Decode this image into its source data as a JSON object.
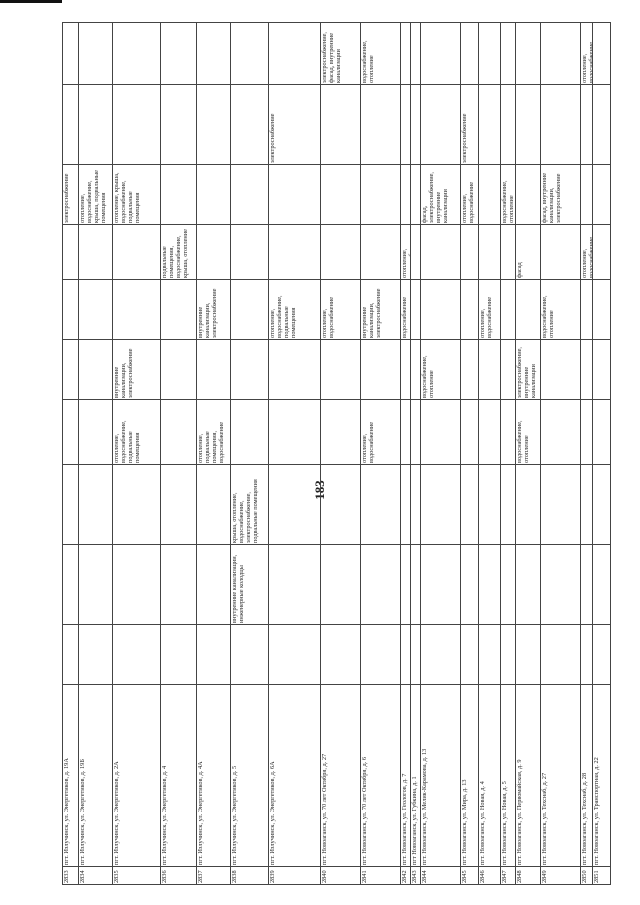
{
  "page_number": "183",
  "table": {
    "rows": [
      [
        "2833",
        "пгт. Излучинск, ул. Энергетиков, д. 19А",
        null,
        null,
        null,
        null,
        null,
        null,
        null,
        "электроснабжение",
        null,
        null
      ],
      [
        "2834",
        "пгт. Излучинск, ул. Энергетиков, д. 19Б",
        null,
        null,
        null,
        null,
        null,
        null,
        null,
        "отопление, водоснабжение, крыша, подвальные помещения",
        null,
        null
      ],
      [
        "2835",
        "пгт. Излучинск, ул. Энергетиков, д. 2А",
        null,
        null,
        null,
        "отопление, водоснабжение, подвальные помещения",
        "внутренние канализации, электроснабжение",
        null,
        null,
        "отопление, крыша, водоснабжение, подвальные помещения",
        null,
        null
      ],
      [
        "2836",
        "пгт. Излучинск, ул. Энергетиков, д. 4",
        null,
        null,
        null,
        null,
        null,
        null,
        "подвальные помещения, водоснабжение, крыша, отопление",
        null,
        null,
        null
      ],
      [
        "2837",
        "пгт. Излучинск, ул. Энергетиков, д. 4А",
        null,
        null,
        null,
        "отопление, подвальные помещения, водоснабжение",
        null,
        "внутренние канализации, электроснабжение",
        null,
        null,
        null,
        null
      ],
      [
        "2838",
        "пгт. Излучинск, ул. Энергетиков, д. 5",
        null,
        "внутренние канализации, инженерные колодцы",
        "крыша, отопление, водоснабжение, электроснабжение, подвальные помещения",
        null,
        null,
        null,
        null,
        null,
        null,
        null
      ],
      [
        "2839",
        "пгт. Излучинск, ул. Энергетиков, д. 6А",
        null,
        null,
        null,
        null,
        null,
        "отопление, водоснабжение, подвальные помещения",
        null,
        null,
        "электроснабжение",
        null
      ],
      [
        "2840",
        "пгт. Новоаганск, ул. 70 лет Октября, д. 27",
        null,
        null,
        null,
        null,
        null,
        "отопление, водоснабжение",
        null,
        null,
        null,
        "электроснабжение, фасад, внутренние канализации"
      ],
      [
        "2841",
        "пгт. Новоаганск, ул. 70 лет Октября, д. 6",
        null,
        null,
        null,
        "отопление, водоснабжение",
        null,
        "внутренние канализации, электроснабжение",
        null,
        null,
        null,
        "водоснабжение, отопление"
      ],
      [
        "2842",
        "пгт. Новоаганск, ул. Геологов, д. 7",
        null,
        null,
        null,
        null,
        null,
        "водоснабжение",
        "отопление, водоснабжение, фасад",
        null,
        null,
        null
      ],
      [
        "2843",
        "пгт Новоаганск, ул. Губкина, д. 1",
        null,
        null,
        null,
        null,
        null,
        null,
        null,
        null,
        null,
        null
      ],
      [
        "2844",
        "пгт. Новоаганск, ул. Мелик-Карамова, д. 13",
        null,
        null,
        null,
        null,
        "водоснабжение, отопление",
        null,
        null,
        "фасад, электроснабжение, внутренние канализации",
        null,
        null
      ],
      [
        "2845",
        "пгт. Новоаганск, ул. Мира, д. 13",
        null,
        null,
        null,
        null,
        null,
        null,
        null,
        "отопление, водоснабжение",
        "электроснабжение",
        null
      ],
      [
        "2846",
        "пгт. Новоаганск, ул. Новая, д. 4",
        null,
        null,
        null,
        null,
        null,
        "отопление, водоснабжение",
        null,
        null,
        null,
        null
      ],
      [
        "2847",
        "пгт. Новоаганск, ул. Новая, д. 5",
        null,
        null,
        null,
        null,
        null,
        null,
        null,
        "водоснабжение, отопление",
        null,
        null
      ],
      [
        "2848",
        "пгт. Новоаганск, ул. Первомайская, д. 9",
        null,
        null,
        null,
        "водоснабжение, отопление",
        "электроснабжение, внутренние канализации",
        null,
        "фасад",
        null,
        null,
        null
      ],
      [
        "2849",
        "пгт. Новоаганск, ул. Техснаб, д. 27",
        null,
        null,
        null,
        null,
        null,
        "водоснабжение, отопление",
        null,
        "фасад, внутренние канализации, электроснабжение",
        null,
        null
      ],
      [
        "2850",
        "пгт. Новоаганск, ул. Техснаб, д. 28",
        null,
        null,
        null,
        null,
        null,
        null,
        "отопление, водоснабжение",
        null,
        null,
        "отопление, водоснабжение"
      ],
      [
        "2851",
        "пгт. Новоаганск, ул. Транспортная, д. 22",
        null,
        null,
        null,
        null,
        null,
        null,
        null,
        null,
        null,
        null
      ]
    ]
  }
}
